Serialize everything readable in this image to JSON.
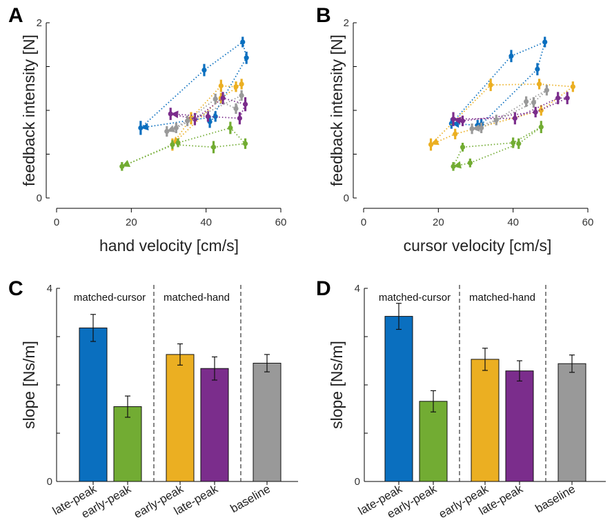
{
  "panels": {
    "A": {
      "letter": "A",
      "xlabel": "hand velocity [cm/s]",
      "ylabel": "feedback intensity [N]",
      "xticks": [
        "0",
        "20",
        "40",
        "60"
      ],
      "yticks": [
        "0",
        "2"
      ]
    },
    "B": {
      "letter": "B",
      "xlabel": "cursor velocity [cm/s]",
      "ylabel": "feedback intensity [N]",
      "xticks": [
        "0",
        "20",
        "40",
        "60"
      ],
      "yticks": [
        "0",
        "2"
      ]
    },
    "C": {
      "letter": "C",
      "ylabel": "slope [Ns/m]",
      "yticks": [
        "0",
        "4"
      ],
      "groups": [
        "matched-cursor",
        "matched-hand"
      ],
      "categories": [
        "late-peak",
        "early-peak",
        "early-peak",
        "late-peak",
        "baseline"
      ]
    },
    "D": {
      "letter": "D",
      "ylabel": "slope [Ns/m]",
      "yticks": [
        "0",
        "4"
      ],
      "groups": [
        "matched-cursor",
        "matched-hand"
      ],
      "categories": [
        "late-peak",
        "early-peak",
        "early-peak",
        "late-peak",
        "baseline"
      ]
    }
  },
  "colors": {
    "blue": "#0a6fbf",
    "green": "#72ac33",
    "orange": "#ebaf22",
    "purple": "#7b2d8c",
    "gray": "#999999"
  },
  "chart_data": [
    {
      "panel": "A",
      "type": "scatter",
      "xlabel": "hand velocity [cm/s]",
      "ylabel": "feedback intensity [N]",
      "xlim": [
        0,
        60
      ],
      "ylim": [
        0,
        2
      ],
      "series": [
        {
          "color": "blue",
          "x": [
            22.5,
            39.5,
            49.8,
            50.8,
            41.0,
            42.5
          ],
          "y": [
            0.8,
            1.46,
            1.78,
            1.6,
            0.87,
            0.93
          ],
          "err": [
            0.08,
            0.07,
            0.06,
            0.07,
            0.07,
            0.06
          ]
        },
        {
          "color": "orange",
          "x": [
            31.0,
            36.0,
            44.0,
            48.0,
            49.5,
            44.0
          ],
          "y": [
            0.61,
            0.91,
            1.28,
            1.27,
            1.3,
            1.14
          ],
          "err": [
            0.07,
            0.07,
            0.07,
            0.06,
            0.06,
            0.06
          ]
        },
        {
          "color": "purple",
          "x": [
            30.5,
            37.0,
            44.5,
            50.5,
            49.0,
            40.5
          ],
          "y": [
            0.96,
            0.9,
            1.14,
            1.07,
            0.91,
            0.93
          ],
          "err": [
            0.07,
            0.07,
            0.07,
            0.08,
            0.07,
            0.06
          ]
        },
        {
          "color": "gray",
          "x": [
            29.5,
            35.0,
            42.5,
            48.0,
            49.5,
            32.0
          ],
          "y": [
            0.76,
            0.88,
            1.13,
            1.02,
            1.17,
            0.8
          ],
          "err": [
            0.06,
            0.06,
            0.06,
            0.06,
            0.06,
            0.06
          ]
        },
        {
          "color": "green",
          "x": [
            17.5,
            32.5,
            46.5,
            50.5,
            42.0,
            31.0
          ],
          "y": [
            0.36,
            0.63,
            0.8,
            0.62,
            0.58,
            0.61
          ],
          "err": [
            0.05,
            0.05,
            0.07,
            0.06,
            0.07,
            0.05
          ]
        }
      ]
    },
    {
      "panel": "B",
      "type": "scatter",
      "xlabel": "cursor velocity [cm/s]",
      "ylabel": "feedback intensity [N]",
      "xlim": [
        0,
        60
      ],
      "ylim": [
        0,
        2
      ],
      "series": [
        {
          "color": "blue",
          "x": [
            23.5,
            39.5,
            48.5,
            46.5,
            31.5,
            30.5
          ],
          "y": [
            0.85,
            1.62,
            1.78,
            1.47,
            0.84,
            0.83
          ],
          "err": [
            0.06,
            0.07,
            0.06,
            0.07,
            0.06,
            0.06
          ]
        },
        {
          "color": "orange",
          "x": [
            18.0,
            34.0,
            47.0,
            56.0,
            47.5,
            24.5
          ],
          "y": [
            0.61,
            1.29,
            1.3,
            1.27,
            1.0,
            0.73
          ],
          "err": [
            0.07,
            0.07,
            0.06,
            0.06,
            0.06,
            0.06
          ]
        },
        {
          "color": "purple",
          "x": [
            24.0,
            40.5,
            52.0,
            54.5,
            46.0,
            26.5
          ],
          "y": [
            0.9,
            0.91,
            1.14,
            1.14,
            0.98,
            0.88
          ],
          "err": [
            0.08,
            0.07,
            0.07,
            0.07,
            0.06,
            0.06
          ]
        },
        {
          "color": "gray",
          "x": [
            29.0,
            35.5,
            43.5,
            49.0,
            45.5,
            31.5
          ],
          "y": [
            0.79,
            0.89,
            1.1,
            1.23,
            1.09,
            0.8
          ],
          "err": [
            0.06,
            0.06,
            0.06,
            0.06,
            0.06,
            0.06
          ]
        },
        {
          "color": "green",
          "x": [
            24.0,
            26.5,
            40.0,
            47.5,
            41.5,
            28.5
          ],
          "y": [
            0.36,
            0.58,
            0.63,
            0.81,
            0.62,
            0.4
          ],
          "err": [
            0.05,
            0.05,
            0.06,
            0.07,
            0.06,
            0.05
          ]
        }
      ]
    },
    {
      "panel": "C",
      "type": "bar",
      "ylabel": "slope [Ns/m]",
      "ylim": [
        0,
        4
      ],
      "categories": [
        "late-peak",
        "early-peak",
        "early-peak",
        "late-peak",
        "baseline"
      ],
      "values": [
        3.18,
        1.55,
        2.63,
        2.34,
        2.45
      ],
      "errors": [
        0.28,
        0.22,
        0.22,
        0.24,
        0.18
      ],
      "colors": [
        "blue",
        "green",
        "orange",
        "purple",
        "gray"
      ]
    },
    {
      "panel": "D",
      "type": "bar",
      "ylabel": "slope [Ns/m]",
      "ylim": [
        0,
        4
      ],
      "categories": [
        "late-peak",
        "early-peak",
        "early-peak",
        "late-peak",
        "baseline"
      ],
      "values": [
        3.42,
        1.66,
        2.53,
        2.29,
        2.44
      ],
      "errors": [
        0.27,
        0.22,
        0.23,
        0.21,
        0.18
      ],
      "colors": [
        "blue",
        "green",
        "orange",
        "purple",
        "gray"
      ]
    }
  ]
}
